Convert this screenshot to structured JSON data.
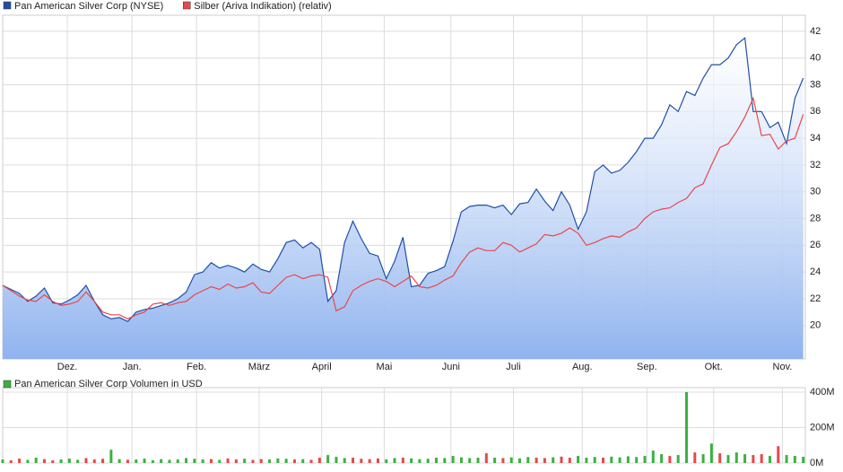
{
  "chart_data": [
    {
      "type": "line",
      "legend": "top-left",
      "grid": true,
      "x": [
        0,
        4,
        8,
        12,
        16,
        20,
        24,
        28,
        32,
        36,
        40,
        44,
        48,
        52,
        56,
        60,
        64,
        68,
        72,
        76,
        80,
        84,
        88,
        92,
        96,
        100,
        104,
        108,
        112,
        116,
        120,
        124,
        128,
        132,
        136,
        140,
        144,
        148,
        152,
        156,
        160,
        164,
        168,
        172,
        176,
        180,
        184,
        188,
        192,
        196,
        200,
        204,
        208,
        212,
        216,
        220,
        224,
        228,
        232,
        236,
        240,
        244,
        248,
        252,
        256,
        260,
        264,
        268,
        272,
        276,
        280,
        284,
        288,
        292,
        296,
        300,
        304,
        308,
        312,
        316,
        320,
        324,
        328,
        332,
        336,
        340,
        344,
        348,
        352,
        356,
        360,
        364,
        368,
        372,
        376,
        380,
        384
      ],
      "xlim": [
        0,
        385
      ],
      "xticks": [
        {
          "value": 31,
          "label": "Dez."
        },
        {
          "value": 62,
          "label": "Jan."
        },
        {
          "value": 93,
          "label": "Feb."
        },
        {
          "value": 123,
          "label": "März"
        },
        {
          "value": 153,
          "label": "April"
        },
        {
          "value": 183,
          "label": "Mai"
        },
        {
          "value": 215,
          "label": "Juni"
        },
        {
          "value": 245,
          "label": "Juli"
        },
        {
          "value": 278,
          "label": "Aug."
        },
        {
          "value": 309,
          "label": "Sep."
        },
        {
          "value": 341,
          "label": "Okt."
        },
        {
          "value": 374,
          "label": "Nov."
        }
      ],
      "ylim": [
        17.5,
        43.2
      ],
      "yticks": [
        20,
        22,
        24,
        26,
        28,
        30,
        32,
        34,
        36,
        38,
        40,
        42
      ],
      "series": [
        {
          "name": "Pan American Silver Corp (NYSE)",
          "color": "#1f4fa8",
          "area_color": "#8fb3ef",
          "values": [
            23.0,
            22.7,
            22.4,
            21.8,
            22.2,
            22.8,
            21.7,
            21.6,
            21.9,
            22.3,
            23.0,
            21.8,
            20.8,
            20.5,
            20.6,
            20.3,
            21.0,
            21.2,
            21.3,
            21.5,
            21.7,
            22.0,
            22.5,
            23.8,
            24.0,
            24.7,
            24.3,
            24.5,
            24.3,
            24.0,
            24.6,
            24.2,
            24.0,
            25.0,
            26.2,
            26.4,
            25.8,
            26.2,
            25.7,
            21.8,
            22.6,
            26.2,
            27.8,
            26.5,
            25.4,
            25.2,
            23.5,
            24.8,
            26.6,
            22.9,
            23.0,
            23.9,
            24.1,
            24.4,
            26.3,
            28.5,
            28.9,
            29.0,
            29.0,
            28.8,
            29.0,
            28.3,
            29.1,
            29.2,
            30.2,
            29.3,
            28.6,
            30.0,
            29.0,
            27.2,
            28.5,
            31.5,
            32.0,
            31.4,
            31.6,
            32.2,
            33.0,
            34.0,
            34.0,
            35.0,
            36.5,
            36.0,
            37.5,
            37.2,
            38.5,
            39.5,
            39.5,
            40.0,
            41.0,
            41.5,
            36.0,
            36.0,
            34.8,
            35.2,
            33.6,
            37.0,
            38.5
          ]
        },
        {
          "name": "Silber (Ariva Indikation) (relativ)",
          "color": "#e8474a",
          "values": [
            23.0,
            22.6,
            22.2,
            21.9,
            21.8,
            22.3,
            21.8,
            21.5,
            21.6,
            21.8,
            22.5,
            21.8,
            21.0,
            20.8,
            20.8,
            20.5,
            20.8,
            21.0,
            21.6,
            21.7,
            21.5,
            21.7,
            21.8,
            22.3,
            22.6,
            22.9,
            22.7,
            23.1,
            22.8,
            22.9,
            23.2,
            22.5,
            22.4,
            23.0,
            23.6,
            23.8,
            23.5,
            23.7,
            23.8,
            23.6,
            21.1,
            21.4,
            22.6,
            23.0,
            23.3,
            23.5,
            23.3,
            22.9,
            23.3,
            23.7,
            22.9,
            22.8,
            23.0,
            23.4,
            23.7,
            24.7,
            25.5,
            25.8,
            25.6,
            25.6,
            26.2,
            26.0,
            25.5,
            25.8,
            26.1,
            26.8,
            26.7,
            26.9,
            27.3,
            26.9,
            26.0,
            26.2,
            26.5,
            26.7,
            26.6,
            27.0,
            27.3,
            28.0,
            28.5,
            28.7,
            28.8,
            29.2,
            29.5,
            30.3,
            30.6,
            32.0,
            33.3,
            33.6,
            34.5,
            35.6,
            37.0,
            34.2,
            34.3,
            33.2,
            33.8,
            34.0,
            35.8
          ]
        }
      ]
    },
    {
      "type": "bar",
      "title": "Pan American Silver Corp Volumen in USD",
      "legend_color": "#3cb043",
      "grid": true,
      "ylim": [
        0,
        425000000
      ],
      "yticks": [
        {
          "value": 0,
          "label": "0M"
        },
        {
          "value": 200000000,
          "label": "200M"
        },
        {
          "value": 400000000,
          "label": "400M"
        }
      ],
      "values": [
        20000000,
        15000000,
        25000000,
        18000000,
        30000000,
        22000000,
        15000000,
        20000000,
        25000000,
        18000000,
        28000000,
        20000000,
        24000000,
        75000000,
        22000000,
        18000000,
        20000000,
        25000000,
        16000000,
        22000000,
        18000000,
        20000000,
        28000000,
        24000000,
        20000000,
        22000000,
        18000000,
        26000000,
        20000000,
        24000000,
        18000000,
        22000000,
        20000000,
        26000000,
        24000000,
        20000000,
        22000000,
        18000000,
        30000000,
        45000000,
        35000000,
        28000000,
        30000000,
        24000000,
        22000000,
        26000000,
        20000000,
        28000000,
        30000000,
        26000000,
        22000000,
        24000000,
        30000000,
        28000000,
        40000000,
        32000000,
        28000000,
        30000000,
        55000000,
        30000000,
        28000000,
        32000000,
        26000000,
        34000000,
        30000000,
        28000000,
        32000000,
        36000000,
        30000000,
        40000000,
        30000000,
        34000000,
        30000000,
        36000000,
        32000000,
        38000000,
        34000000,
        40000000,
        70000000,
        50000000,
        40000000,
        45000000,
        400000000,
        60000000,
        50000000,
        110000000,
        55000000,
        45000000,
        60000000,
        50000000,
        45000000,
        50000000,
        40000000,
        95000000,
        45000000,
        40000000,
        35000000
      ],
      "colors": [
        "#3cb043",
        "#e8474a",
        "#e8474a",
        "#3cb043",
        "#3cb043",
        "#e8474a",
        "#e8474a",
        "#3cb043",
        "#3cb043",
        "#3cb043",
        "#e8474a",
        "#e8474a",
        "#e8474a",
        "#3cb043",
        "#3cb043",
        "#e8474a",
        "#3cb043",
        "#3cb043",
        "#3cb043",
        "#3cb043",
        "#3cb043",
        "#3cb043",
        "#3cb043",
        "#3cb043",
        "#3cb043",
        "#e8474a",
        "#3cb043",
        "#e8474a",
        "#e8474a",
        "#3cb043",
        "#e8474a",
        "#e8474a",
        "#3cb043",
        "#3cb043",
        "#3cb043",
        "#e8474a",
        "#3cb043",
        "#e8474a",
        "#e8474a",
        "#3cb043",
        "#3cb043",
        "#3cb043",
        "#e8474a",
        "#e8474a",
        "#e8474a",
        "#e8474a",
        "#3cb043",
        "#3cb043",
        "#e8474a",
        "#3cb043",
        "#3cb043",
        "#3cb043",
        "#3cb043",
        "#3cb043",
        "#3cb043",
        "#3cb043",
        "#3cb043",
        "#3cb043",
        "#e8474a",
        "#3cb043",
        "#e8474a",
        "#3cb043",
        "#3cb043",
        "#3cb043",
        "#e8474a",
        "#e8474a",
        "#3cb043",
        "#e8474a",
        "#e8474a",
        "#3cb043",
        "#3cb043",
        "#3cb043",
        "#e8474a",
        "#3cb043",
        "#3cb043",
        "#3cb043",
        "#3cb043",
        "#3cb043",
        "#3cb043",
        "#3cb043",
        "#e8474a",
        "#3cb043",
        "#3cb043",
        "#e8474a",
        "#3cb043",
        "#3cb043",
        "#e8474a",
        "#3cb043",
        "#3cb043",
        "#3cb043",
        "#e8474a",
        "#e8474a",
        "#3cb043",
        "#e8474a",
        "#3cb043",
        "#3cb043",
        "#3cb043"
      ]
    }
  ]
}
